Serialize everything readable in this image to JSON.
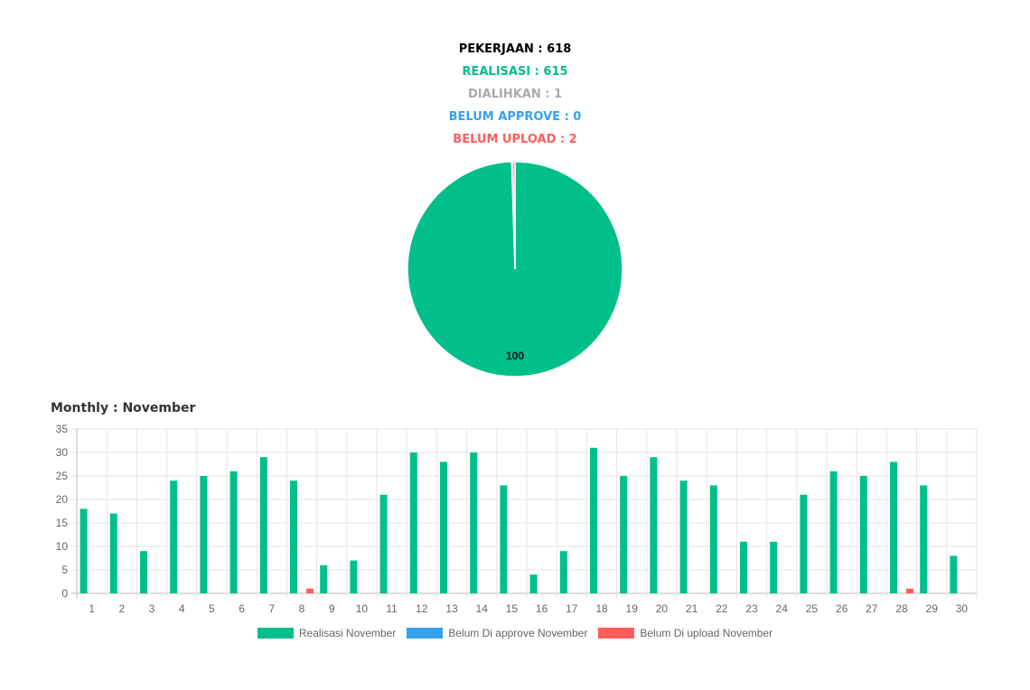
{
  "summary": {
    "pekerjaan": "PEKERJAAN : 618",
    "realisasi": "REALISASI : 615",
    "dialihkan": "DIALIHKAN : 1",
    "belum_approve": "BELUM APPROVE : 0",
    "belum_upload": "BELUM UPLOAD : 2"
  },
  "colors": {
    "green": "#00bf8a",
    "blue": "#36a2eb",
    "red": "#ff5c5c",
    "gray": "#aaaaaa",
    "black": "#000000"
  },
  "monthly_title": "Monthly : November",
  "chart_data": [
    {
      "type": "pie",
      "slices": [
        {
          "value": 615,
          "color": "#00bf8a"
        },
        {
          "value": 1,
          "color": "#aaaaaa"
        },
        {
          "value": 0,
          "color": "#36a2eb"
        },
        {
          "value": 2,
          "color": "#ff5c5c"
        }
      ],
      "data_label": "100"
    },
    {
      "type": "bar",
      "title": "Monthly : November",
      "categories": [
        "1",
        "2",
        "3",
        "4",
        "5",
        "6",
        "7",
        "8",
        "9",
        "10",
        "11",
        "12",
        "13",
        "14",
        "15",
        "16",
        "17",
        "18",
        "19",
        "20",
        "21",
        "22",
        "23",
        "24",
        "25",
        "26",
        "27",
        "28",
        "29",
        "30"
      ],
      "series": [
        {
          "name": "Realisasi November",
          "color": "#00bf8a",
          "values": [
            18,
            17,
            9,
            24,
            25,
            26,
            29,
            24,
            6,
            7,
            21,
            30,
            28,
            30,
            23,
            4,
            9,
            31,
            25,
            29,
            24,
            23,
            11,
            11,
            21,
            26,
            25,
            28,
            23,
            8
          ]
        },
        {
          "name": "Belum Di approve November",
          "color": "#36a2eb",
          "values": [
            0,
            0,
            0,
            0,
            0,
            0,
            0,
            0,
            0,
            0,
            0,
            0,
            0,
            0,
            0,
            0,
            0,
            0,
            0,
            0,
            0,
            0,
            0,
            0,
            0,
            0,
            0,
            0,
            0,
            0
          ]
        },
        {
          "name": "Belum Di upload November",
          "color": "#ff5c5c",
          "values": [
            0,
            0,
            0,
            0,
            0,
            0,
            0,
            1,
            0,
            0,
            0,
            0,
            0,
            0,
            0,
            0,
            0,
            0,
            0,
            0,
            0,
            0,
            0,
            0,
            0,
            0,
            0,
            1,
            0,
            0
          ]
        }
      ],
      "ylim": [
        0,
        35
      ],
      "yticks": [
        0,
        5,
        10,
        15,
        20,
        25,
        30,
        35
      ],
      "grid": true,
      "legend": "bottom"
    }
  ]
}
